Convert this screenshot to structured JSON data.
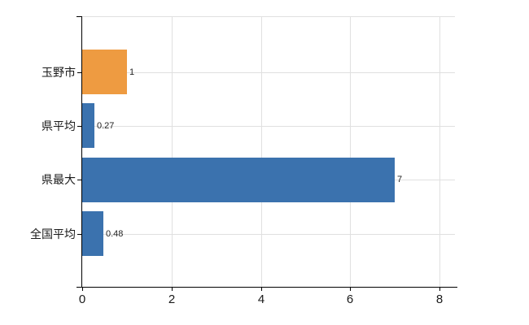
{
  "chart_data": {
    "type": "bar",
    "orientation": "horizontal",
    "categories": [
      "玉野市",
      "県平均",
      "県最大",
      "全国平均"
    ],
    "values": [
      1,
      0.27,
      7,
      0.48
    ],
    "value_labels": [
      "1",
      "0.27",
      "7",
      "0.48"
    ],
    "series": [
      {
        "name": "",
        "values": [
          1,
          0.27,
          7,
          0.48
        ]
      }
    ],
    "bar_colors": [
      "#EE9B41",
      "#3B72AE",
      "#3B72AE",
      "#3B72AE"
    ],
    "xticks": [
      0,
      2,
      4,
      6,
      8
    ],
    "xtick_labels": [
      "0",
      "2",
      "4",
      "6",
      "8"
    ],
    "xlim": [
      0,
      8.35
    ],
    "xlabel": "",
    "ylabel": "",
    "grid": true,
    "grid_color": "#E0E0E0",
    "axis_color": "#000000",
    "text_color": "#1A1A1A",
    "value_label_color": "#222222",
    "background": "#FFFFFF"
  }
}
